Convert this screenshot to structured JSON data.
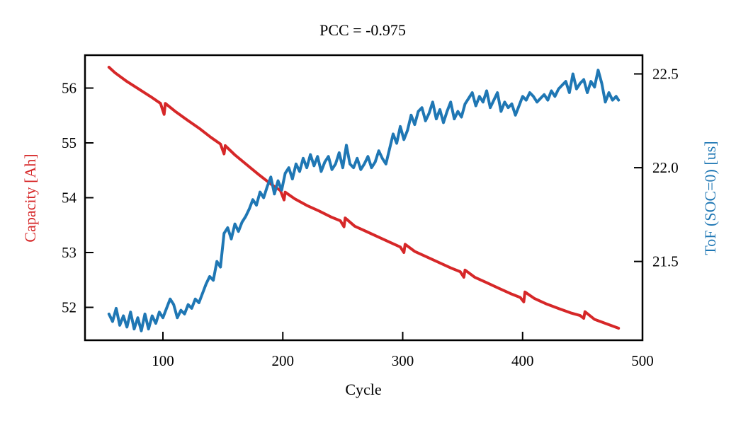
{
  "chart_data": {
    "type": "line",
    "title": "PCC = -0.975",
    "xlabel": "Cycle",
    "ylabel_left": "Capacity [Ah]",
    "ylabel_right": "ToF (SOC=0) [us]",
    "xlim": [
      35,
      500
    ],
    "ylim_left": [
      51.4,
      56.6
    ],
    "ylim_right": [
      21.08,
      22.6
    ],
    "x_ticks": [
      100,
      200,
      300,
      400,
      500
    ],
    "x_tick_labels": [
      "100",
      "200",
      "300",
      "400",
      "500"
    ],
    "y_left_ticks": [
      52,
      53,
      54,
      55,
      56
    ],
    "y_left_tick_labels": [
      "52",
      "53",
      "54",
      "55",
      "56"
    ],
    "y_right_ticks": [
      21.5,
      22.0,
      22.5
    ],
    "y_right_tick_labels": [
      "21.5",
      "22.0",
      "22.5"
    ],
    "colors": {
      "capacity": "#d62728",
      "tof": "#1f77b4",
      "axis": "#000000"
    },
    "series": [
      {
        "name": "Capacity",
        "axis": "left",
        "x": [
          55,
          60,
          70,
          80,
          90,
          98,
          101,
          102,
          110,
          120,
          130,
          140,
          148,
          151,
          152,
          160,
          170,
          180,
          190,
          198,
          201,
          202,
          210,
          220,
          230,
          240,
          248,
          251,
          252,
          260,
          270,
          280,
          290,
          298,
          301,
          302,
          310,
          320,
          330,
          340,
          348,
          351,
          352,
          360,
          370,
          380,
          390,
          398,
          401,
          402,
          410,
          420,
          430,
          440,
          448,
          451,
          452,
          460,
          470,
          480
        ],
        "values": [
          56.38,
          56.28,
          56.12,
          55.98,
          55.84,
          55.72,
          55.52,
          55.72,
          55.58,
          55.42,
          55.27,
          55.1,
          54.98,
          54.8,
          54.95,
          54.78,
          54.6,
          54.42,
          54.25,
          54.13,
          53.96,
          54.1,
          53.98,
          53.86,
          53.76,
          53.65,
          53.58,
          53.47,
          53.63,
          53.48,
          53.38,
          53.28,
          53.18,
          53.1,
          53.0,
          53.15,
          53.02,
          52.92,
          52.82,
          52.72,
          52.65,
          52.55,
          52.68,
          52.55,
          52.45,
          52.35,
          52.25,
          52.18,
          52.1,
          52.28,
          52.16,
          52.06,
          51.98,
          51.9,
          51.85,
          51.8,
          51.92,
          51.78,
          51.7,
          51.62
        ]
      },
      {
        "name": "ToF (SOC=0)",
        "axis": "right",
        "x": [
          55,
          58,
          61,
          64,
          67,
          70,
          73,
          76,
          79,
          82,
          85,
          88,
          91,
          94,
          97,
          100,
          103,
          106,
          109,
          112,
          115,
          118,
          121,
          124,
          127,
          130,
          133,
          136,
          139,
          142,
          145,
          148,
          151,
          154,
          157,
          160,
          163,
          166,
          169,
          172,
          175,
          178,
          181,
          184,
          187,
          190,
          193,
          196,
          199,
          202,
          205,
          208,
          211,
          214,
          217,
          220,
          223,
          226,
          229,
          232,
          235,
          238,
          241,
          244,
          247,
          250,
          253,
          256,
          259,
          262,
          265,
          268,
          271,
          274,
          277,
          280,
          283,
          286,
          289,
          292,
          295,
          298,
          301,
          304,
          307,
          310,
          313,
          316,
          319,
          322,
          325,
          328,
          331,
          334,
          337,
          340,
          343,
          346,
          349,
          352,
          355,
          358,
          361,
          364,
          367,
          370,
          373,
          376,
          379,
          382,
          385,
          388,
          391,
          394,
          397,
          400,
          403,
          406,
          409,
          412,
          415,
          418,
          421,
          424,
          427,
          430,
          433,
          436,
          439,
          442,
          445,
          448,
          451,
          454,
          457,
          460,
          463,
          466,
          469,
          472,
          475,
          478,
          480
        ],
        "values": [
          21.22,
          21.18,
          21.25,
          21.16,
          21.21,
          21.15,
          21.23,
          21.14,
          21.2,
          21.13,
          21.22,
          21.14,
          21.21,
          21.17,
          21.23,
          21.2,
          21.25,
          21.3,
          21.27,
          21.2,
          21.24,
          21.22,
          21.27,
          21.25,
          21.3,
          21.28,
          21.33,
          21.38,
          21.42,
          21.4,
          21.5,
          21.47,
          21.65,
          21.68,
          21.62,
          21.7,
          21.66,
          21.71,
          21.74,
          21.78,
          21.83,
          21.8,
          21.87,
          21.84,
          21.9,
          21.95,
          21.86,
          21.93,
          21.88,
          21.97,
          22.0,
          21.94,
          22.02,
          21.98,
          22.05,
          22.0,
          22.07,
          22.01,
          22.06,
          21.98,
          22.03,
          22.06,
          21.99,
          22.02,
          22.08,
          22.0,
          22.12,
          22.02,
          22.0,
          22.05,
          21.99,
          22.02,
          22.06,
          22.0,
          22.03,
          22.09,
          22.05,
          22.02,
          22.1,
          22.18,
          22.13,
          22.22,
          22.15,
          22.2,
          22.28,
          22.23,
          22.3,
          22.32,
          22.25,
          22.29,
          22.35,
          22.26,
          22.31,
          22.24,
          22.3,
          22.35,
          22.26,
          22.3,
          22.27,
          22.34,
          22.37,
          22.4,
          22.33,
          22.38,
          22.35,
          22.41,
          22.32,
          22.36,
          22.4,
          22.3,
          22.35,
          22.32,
          22.34,
          22.28,
          22.33,
          22.38,
          22.36,
          22.4,
          22.38,
          22.35,
          22.37,
          22.39,
          22.36,
          22.41,
          22.38,
          22.42,
          22.44,
          22.46,
          22.4,
          22.5,
          22.42,
          22.45,
          22.47,
          22.4,
          22.46,
          22.43,
          22.52,
          22.45,
          22.35,
          22.4,
          22.36,
          22.38,
          22.36
        ]
      }
    ]
  }
}
